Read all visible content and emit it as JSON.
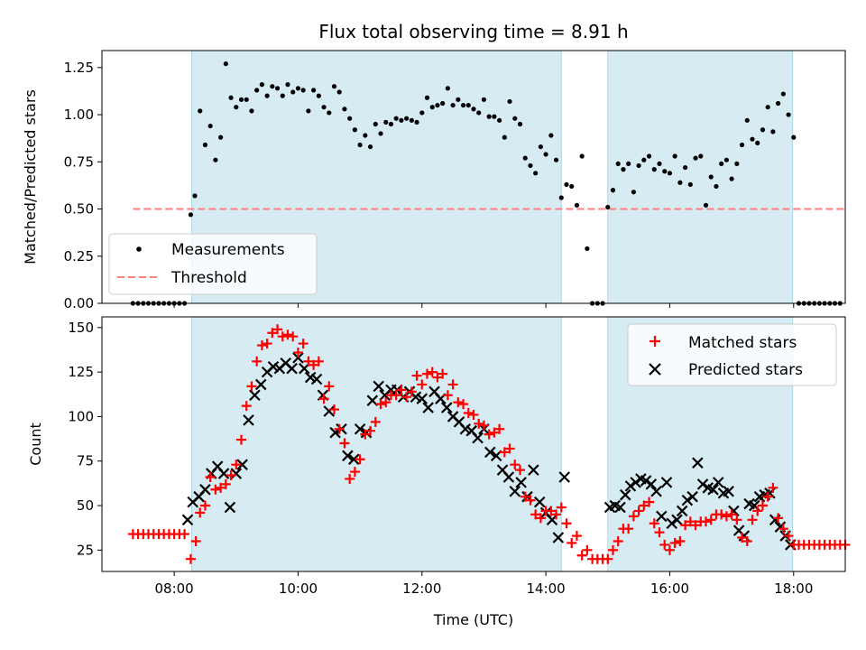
{
  "colors": {
    "band": "#add8e6",
    "measurement": "#000000",
    "threshold": "#ff7f7f",
    "matched": "#ff0000",
    "predicted": "#000000"
  },
  "chart_data": [
    {
      "type": "scatter",
      "title": "Flux total observing time = 8.91 h",
      "xlabel": "",
      "ylabel": "Matched/Predicted stars",
      "xlim": [
        "06:50",
        "18:50"
      ],
      "ylim": [
        0,
        1.34
      ],
      "yticks": [
        "0.00",
        "0.25",
        "0.50",
        "0.75",
        "1.00",
        "1.25"
      ],
      "shaded_intervals": [
        [
          "08:17",
          "14:15"
        ],
        [
          "15:00",
          "17:59"
        ]
      ],
      "legend": {
        "position": "lower-left",
        "entries": [
          "Measurements",
          "Threshold"
        ]
      },
      "threshold": {
        "name": "Threshold",
        "value": 0.5,
        "x_start": "07:20",
        "x_end": "18:50"
      },
      "series": [
        {
          "name": "Measurements",
          "x": [
            "07:20",
            "07:25",
            "07:30",
            "07:35",
            "07:40",
            "07:45",
            "07:50",
            "07:55",
            "08:00",
            "08:05",
            "08:10",
            "08:16",
            "08:20",
            "08:25",
            "08:30",
            "08:35",
            "08:40",
            "08:45",
            "08:50",
            "08:55",
            "09:00",
            "09:05",
            "09:10",
            "09:15",
            "09:20",
            "09:25",
            "09:30",
            "09:35",
            "09:40",
            "09:45",
            "09:50",
            "09:55",
            "10:00",
            "10:05",
            "10:10",
            "10:15",
            "10:20",
            "10:25",
            "10:30",
            "10:35",
            "10:40",
            "10:45",
            "10:50",
            "10:55",
            "11:00",
            "11:05",
            "11:10",
            "11:15",
            "11:20",
            "11:25",
            "11:30",
            "11:35",
            "11:40",
            "11:45",
            "11:50",
            "11:55",
            "12:00",
            "12:05",
            "12:10",
            "12:15",
            "12:20",
            "12:25",
            "12:30",
            "12:35",
            "12:40",
            "12:45",
            "12:50",
            "12:55",
            "13:00",
            "13:05",
            "13:10",
            "13:15",
            "13:20",
            "13:25",
            "13:30",
            "13:35",
            "13:40",
            "13:45",
            "13:50",
            "13:55",
            "14:00",
            "14:05",
            "14:10",
            "14:15",
            "14:20",
            "14:25",
            "14:30",
            "14:35",
            "14:40",
            "14:45",
            "14:50",
            "14:55",
            "15:00",
            "15:05",
            "15:10",
            "15:15",
            "15:20",
            "15:25",
            "15:30",
            "15:35",
            "15:40",
            "15:45",
            "15:50",
            "15:55",
            "16:00",
            "16:05",
            "16:10",
            "16:15",
            "16:20",
            "16:25",
            "16:30",
            "16:35",
            "16:40",
            "16:45",
            "16:50",
            "16:55",
            "17:00",
            "17:05",
            "17:10",
            "17:15",
            "17:20",
            "17:25",
            "17:30",
            "17:35",
            "17:40",
            "17:45",
            "17:50",
            "17:55",
            "18:00",
            "18:05",
            "18:10",
            "18:15",
            "18:20",
            "18:25",
            "18:30",
            "18:35",
            "18:40",
            "18:45"
          ],
          "y": [
            0,
            0,
            0,
            0,
            0,
            0,
            0,
            0,
            0,
            0,
            0,
            0.47,
            0.57,
            1.02,
            0.84,
            0.94,
            0.76,
            0.88,
            1.27,
            1.09,
            1.04,
            1.08,
            1.08,
            1.02,
            1.13,
            1.16,
            1.1,
            1.15,
            1.14,
            1.1,
            1.16,
            1.12,
            1.14,
            1.13,
            1.02,
            1.13,
            1.1,
            1.04,
            1.01,
            1.15,
            1.12,
            1.03,
            0.98,
            0.92,
            0.84,
            0.89,
            0.83,
            0.95,
            0.9,
            0.96,
            0.95,
            0.98,
            0.97,
            0.98,
            0.97,
            0.96,
            1.01,
            1.09,
            1.04,
            1.05,
            1.06,
            1.14,
            1.05,
            1.08,
            1.05,
            1.05,
            1.03,
            1.01,
            1.08,
            0.99,
            0.99,
            0.97,
            0.88,
            1.07,
            0.98,
            0.95,
            0.77,
            0.73,
            0.69,
            0.83,
            0.79,
            0.89,
            0.76,
            0.56,
            0.63,
            0.62,
            0.52,
            0.78,
            0.29,
            0,
            0,
            0,
            0.51,
            0.6,
            0.74,
            0.71,
            0.74,
            0.59,
            0.73,
            0.76,
            0.78,
            0.71,
            0.74,
            0.7,
            0.69,
            0.78,
            0.64,
            0.72,
            0.63,
            0.77,
            0.78,
            0.52,
            0.67,
            0.62,
            0.74,
            0.76,
            0.66,
            0.74,
            0.84,
            0.97,
            0.87,
            0.85,
            0.92,
            1.04,
            0.91,
            1.06,
            1.11,
            1.0,
            0.88,
            0,
            0,
            0,
            0,
            0,
            0,
            0,
            0,
            0
          ]
        }
      ]
    },
    {
      "type": "scatter",
      "title": "",
      "xlabel": "Time (UTC)",
      "ylabel": "Count",
      "xlim": [
        "06:50",
        "18:50"
      ],
      "ylim": [
        13,
        156
      ],
      "xticks": [
        "08:00",
        "10:00",
        "12:00",
        "14:00",
        "16:00",
        "18:00"
      ],
      "yticks": [
        "25",
        "50",
        "75",
        "100",
        "125",
        "150"
      ],
      "shaded_intervals": [
        [
          "08:17",
          "14:15"
        ],
        [
          "15:00",
          "17:59"
        ]
      ],
      "legend": {
        "position": "upper-right",
        "entries": [
          "Matched stars",
          "Predicted stars"
        ]
      },
      "series": [
        {
          "name": "Matched stars",
          "marker": "plus",
          "x": [
            "07:20",
            "07:25",
            "07:30",
            "07:35",
            "07:40",
            "07:45",
            "07:50",
            "07:55",
            "08:00",
            "08:05",
            "08:10",
            "08:16",
            "08:21",
            "08:25",
            "08:30",
            "08:35",
            "08:40",
            "08:45",
            "08:50",
            "08:55",
            "09:00",
            "09:05",
            "09:10",
            "09:15",
            "09:20",
            "09:25",
            "09:30",
            "09:35",
            "09:40",
            "09:45",
            "09:50",
            "09:55",
            "10:00",
            "10:05",
            "10:10",
            "10:15",
            "10:20",
            "10:25",
            "10:30",
            "10:35",
            "10:40",
            "10:45",
            "10:50",
            "10:55",
            "11:00",
            "11:05",
            "11:10",
            "11:15",
            "11:20",
            "11:25",
            "11:30",
            "11:35",
            "11:40",
            "11:45",
            "11:50",
            "11:55",
            "12:00",
            "12:05",
            "12:10",
            "12:15",
            "12:20",
            "12:25",
            "12:30",
            "12:35",
            "12:40",
            "12:45",
            "12:50",
            "12:55",
            "13:00",
            "13:05",
            "13:10",
            "13:15",
            "13:20",
            "13:25",
            "13:30",
            "13:35",
            "13:40",
            "13:45",
            "13:50",
            "13:55",
            "14:00",
            "14:05",
            "14:10",
            "14:15",
            "14:20",
            "14:25",
            "14:30",
            "14:35",
            "14:40",
            "14:45",
            "14:50",
            "14:55",
            "15:00",
            "15:05",
            "15:10",
            "15:15",
            "15:20",
            "15:25",
            "15:30",
            "15:35",
            "15:40",
            "15:45",
            "15:50",
            "15:55",
            "16:00",
            "16:05",
            "16:10",
            "16:15",
            "16:20",
            "16:25",
            "16:30",
            "16:35",
            "16:40",
            "16:45",
            "16:50",
            "16:55",
            "17:00",
            "17:05",
            "17:10",
            "17:15",
            "17:20",
            "17:25",
            "17:30",
            "17:35",
            "17:40",
            "17:45",
            "17:50",
            "17:55",
            "18:00",
            "18:05",
            "18:10",
            "18:15",
            "18:20",
            "18:25",
            "18:30",
            "18:35",
            "18:40",
            "18:45",
            "18:50"
          ],
          "y": [
            34,
            34,
            34,
            34,
            34,
            34,
            34,
            34,
            34,
            34,
            34,
            20,
            30,
            46,
            50,
            66,
            59,
            60,
            62,
            67,
            73,
            87,
            106,
            117,
            131,
            140,
            141,
            147,
            149,
            145,
            146,
            145,
            136,
            141,
            131,
            129,
            131,
            110,
            117,
            104,
            93,
            85,
            65,
            69,
            76,
            90,
            92,
            97,
            107,
            108,
            112,
            112,
            115,
            111,
            114,
            123,
            118,
            124,
            125,
            122,
            124,
            112,
            118,
            108,
            107,
            102,
            101,
            96,
            95,
            90,
            91,
            93,
            80,
            82,
            73,
            70,
            55,
            53,
            45,
            43,
            47,
            47,
            45,
            49,
            40,
            29,
            33,
            22,
            25,
            20,
            20,
            20,
            20,
            25,
            30,
            37,
            37,
            44,
            47,
            50,
            52,
            40,
            35,
            28,
            25,
            29,
            30,
            39,
            41,
            39,
            41,
            41,
            42,
            45,
            45,
            44,
            45,
            42,
            32,
            30,
            42,
            47,
            50,
            55,
            60,
            43,
            37,
            33,
            28,
            28,
            28,
            28,
            28,
            28,
            28,
            28,
            28,
            28,
            28
          ]
        },
        {
          "name": "Predicted stars",
          "marker": "x",
          "x": [
            "08:13",
            "08:18",
            "08:24",
            "08:30",
            "08:36",
            "08:42",
            "08:48",
            "08:54",
            "09:00",
            "09:06",
            "09:12",
            "09:18",
            "09:24",
            "09:30",
            "09:36",
            "09:42",
            "09:48",
            "09:54",
            "10:00",
            "10:06",
            "10:12",
            "10:18",
            "10:24",
            "10:30",
            "10:36",
            "10:42",
            "10:48",
            "10:54",
            "11:00",
            "11:06",
            "11:12",
            "11:18",
            "11:24",
            "11:30",
            "11:36",
            "11:42",
            "11:48",
            "11:54",
            "12:00",
            "12:06",
            "12:12",
            "12:18",
            "12:24",
            "12:30",
            "12:36",
            "12:42",
            "12:48",
            "12:54",
            "13:00",
            "13:06",
            "13:12",
            "13:18",
            "13:24",
            "13:30",
            "13:36",
            "13:42",
            "13:48",
            "13:54",
            "14:00",
            "14:06",
            "14:12",
            "14:18",
            "15:02",
            "15:07",
            "15:12",
            "15:17",
            "15:22",
            "15:27",
            "15:32",
            "15:37",
            "15:42",
            "15:47",
            "15:52",
            "15:57",
            "16:02",
            "16:07",
            "16:12",
            "16:17",
            "16:22",
            "16:27",
            "16:32",
            "16:37",
            "16:42",
            "16:47",
            "16:52",
            "16:57",
            "17:02",
            "17:07",
            "17:12",
            "17:17",
            "17:22",
            "17:27",
            "17:32",
            "17:37",
            "17:42",
            "17:47",
            "17:52",
            "17:57"
          ],
          "y": [
            42,
            52,
            55,
            59,
            68,
            72,
            68,
            49,
            68,
            73,
            98,
            112,
            118,
            125,
            128,
            127,
            130,
            127,
            133,
            127,
            122,
            121,
            112,
            103,
            91,
            93,
            78,
            76,
            93,
            91,
            109,
            117,
            112,
            115,
            115,
            111,
            114,
            111,
            110,
            105,
            114,
            110,
            105,
            100,
            97,
            93,
            92,
            88,
            93,
            80,
            78,
            70,
            66,
            58,
            63,
            55,
            70,
            52,
            46,
            42,
            32,
            66,
            49,
            50,
            49,
            56,
            61,
            63,
            65,
            64,
            62,
            58,
            44,
            63,
            40,
            42,
            47,
            53,
            55,
            74,
            62,
            60,
            59,
            63,
            57,
            58,
            47,
            36,
            33,
            51,
            50,
            55,
            56,
            57,
            42,
            38,
            33,
            28
          ]
        }
      ]
    }
  ]
}
